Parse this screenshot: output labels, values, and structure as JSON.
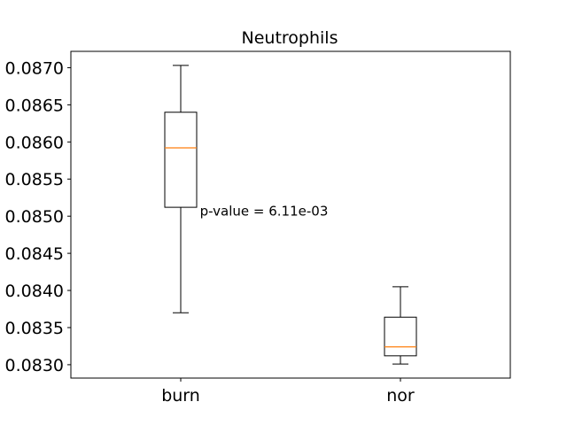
{
  "chart_data": {
    "type": "box",
    "title": "Neutrophils",
    "xlabel": "",
    "ylabel": "",
    "categories": [
      "burn",
      "nor"
    ],
    "boxes": [
      {
        "category": "burn",
        "whisker_low": 0.0837,
        "q1": 0.08512,
        "median": 0.08592,
        "q3": 0.0864,
        "whisker_high": 0.08703
      },
      {
        "category": "nor",
        "whisker_low": 0.08301,
        "q1": 0.08312,
        "median": 0.08324,
        "q3": 0.08364,
        "whisker_high": 0.08405
      }
    ],
    "ylim": [
      0.08282,
      0.08722
    ],
    "yticks": [
      0.083,
      0.0835,
      0.084,
      0.0845,
      0.085,
      0.0855,
      0.086,
      0.0865,
      0.087
    ],
    "ytick_labels": [
      "0.0830",
      "0.0835",
      "0.0840",
      "0.0845",
      "0.0850",
      "0.0855",
      "0.0860",
      "0.0865",
      "0.0870"
    ],
    "annotation": {
      "text": "p-value = 6.11e-03",
      "x": 1.5,
      "y": 0.08508
    },
    "colors": {
      "box": "#000000",
      "median": "#ff7f0e",
      "frame": "#000000"
    },
    "grid": false
  }
}
